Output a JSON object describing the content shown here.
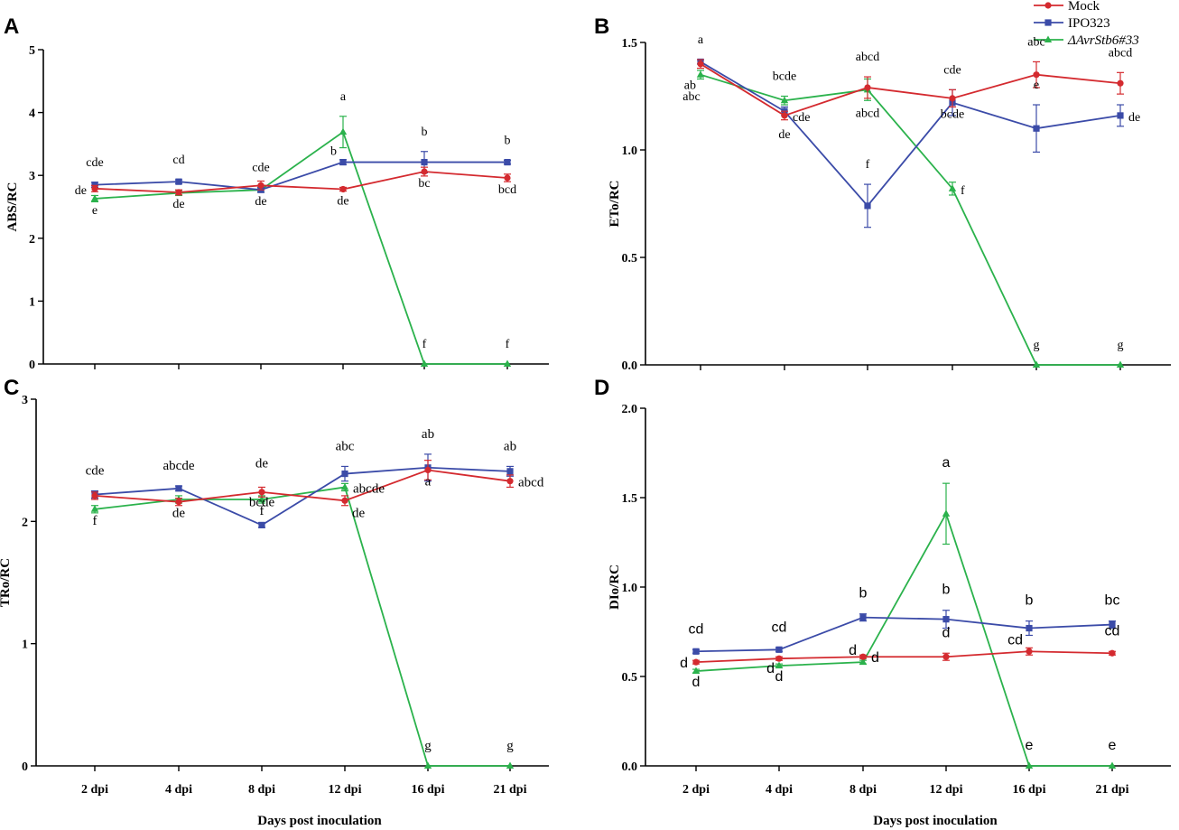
{
  "figure": {
    "xlabel": "Days post inoculation"
  },
  "legend": [
    {
      "name": "Mock",
      "color": "#d42a2f",
      "marker": "circle",
      "italic": false
    },
    {
      "name": "IPO323",
      "color": "#3b4ba8",
      "marker": "square",
      "italic": false
    },
    {
      "name": "ΔAvrStb6#33",
      "color": "#2bb24c",
      "marker": "triangle",
      "italic": true
    }
  ],
  "chart_data": [
    {
      "id": "A",
      "type": "line",
      "ylabel": "ABS/RC",
      "ylim": [
        0,
        5
      ],
      "yticks": [
        "0",
        "1",
        "2",
        "3",
        "4",
        "5"
      ],
      "xlabel": "",
      "categories": [
        "2 dpi",
        "4 dpi",
        "8 dpi",
        "12 dpi",
        "16 dpi",
        "21 dpi"
      ],
      "series": [
        {
          "name": "Mock",
          "values": [
            2.79,
            2.73,
            2.84,
            2.78,
            3.06,
            2.96
          ],
          "errors": [
            0.05,
            0.04,
            0.07,
            0.03,
            0.07,
            0.06
          ],
          "letters": [
            {
              "t": "de",
              "i": 0,
              "pos": "left"
            },
            {
              "t": "de",
              "i": 1,
              "pos": "below"
            },
            {
              "t": "de",
              "i": 3,
              "pos": "below"
            },
            {
              "t": "bc",
              "i": 4,
              "pos": "below"
            },
            {
              "t": "bcd",
              "i": 5,
              "pos": "below"
            }
          ]
        },
        {
          "name": "IPO323",
          "values": [
            2.85,
            2.9,
            2.77,
            3.21,
            3.21,
            3.21
          ],
          "errors": [
            0.04,
            0.03,
            0.04,
            0.04,
            0.17,
            0.03
          ],
          "letters": [
            {
              "t": "cde",
              "i": 0,
              "pos": "above"
            },
            {
              "t": "cd",
              "i": 1,
              "pos": "above"
            },
            {
              "t": "cde",
              "i": 2,
              "pos": "above"
            },
            {
              "t": "b",
              "i": 3,
              "pos": "aboveleft"
            },
            {
              "t": "b",
              "i": 4,
              "pos": "above"
            },
            {
              "t": "b",
              "i": 5,
              "pos": "above"
            }
          ]
        },
        {
          "name": "ΔAvrStb6#33",
          "values": [
            2.63,
            2.72,
            2.77,
            3.69,
            0.0,
            0.0
          ],
          "errors": [
            0.05,
            0.04,
            0.03,
            0.25,
            0,
            0
          ],
          "letters": [
            {
              "t": "e",
              "i": 0,
              "pos": "below"
            },
            {
              "t": "de",
              "i": 2,
              "pos": "below"
            },
            {
              "t": "a",
              "i": 3,
              "pos": "above"
            },
            {
              "t": "f",
              "i": 4,
              "pos": "above"
            },
            {
              "t": "f",
              "i": 5,
              "pos": "above"
            }
          ]
        }
      ]
    },
    {
      "id": "B",
      "type": "line",
      "ylabel": "ETo/RC",
      "ylim": [
        0,
        1.5
      ],
      "yticks": [
        "0.0",
        "0.5",
        "1.0",
        "1.5"
      ],
      "xlabel": "",
      "categories": [
        "2 dpi",
        "4 dpi",
        "8 dpi",
        "12 dpi",
        "16 dpi",
        "21 dpi"
      ],
      "series": [
        {
          "name": "Mock",
          "values": [
            1.4,
            1.16,
            1.29,
            1.24,
            1.35,
            1.31
          ],
          "errors": [
            0.02,
            0.02,
            0.05,
            0.04,
            0.06,
            0.05
          ],
          "letters": [
            {
              "t": "abc",
              "i": 0,
              "pos": "custombelow"
            },
            {
              "t": "cde",
              "i": 1,
              "pos": "right"
            },
            {
              "t": "abcd",
              "i": 2,
              "pos": "above"
            },
            {
              "t": "cde",
              "i": 3,
              "pos": "above"
            },
            {
              "t": "abc",
              "i": 4,
              "pos": "above"
            },
            {
              "t": "abcd",
              "i": 5,
              "pos": "above"
            }
          ]
        },
        {
          "name": "IPO323",
          "values": [
            1.41,
            1.18,
            0.74,
            1.22,
            1.1,
            1.16
          ],
          "errors": [
            0.01,
            0.02,
            0.1,
            0.06,
            0.11,
            0.05
          ],
          "letters": [
            {
              "t": "a",
              "i": 0,
              "pos": "above"
            },
            {
              "t": "de",
              "i": 1,
              "pos": "belowfar"
            },
            {
              "t": "f",
              "i": 2,
              "pos": "above"
            },
            {
              "t": "bcde",
              "i": 3,
              "pos": "below"
            },
            {
              "t": "e",
              "i": 4,
              "pos": "above"
            },
            {
              "t": "de",
              "i": 5,
              "pos": "right"
            }
          ]
        },
        {
          "name": "ΔAvrStb6#33",
          "values": [
            1.35,
            1.23,
            1.28,
            0.82,
            0.0,
            0.0
          ],
          "errors": [
            0.02,
            0.02,
            0.05,
            0.03,
            0,
            0
          ],
          "letters": [
            {
              "t": "ab",
              "i": 0,
              "pos": "belowleft"
            },
            {
              "t": "bcde",
              "i": 1,
              "pos": "above"
            },
            {
              "t": "abcd",
              "i": 2,
              "pos": "belowfar"
            },
            {
              "t": "f",
              "i": 3,
              "pos": "right"
            },
            {
              "t": "g",
              "i": 4,
              "pos": "above"
            },
            {
              "t": "g",
              "i": 5,
              "pos": "above"
            }
          ]
        }
      ]
    },
    {
      "id": "C",
      "type": "line",
      "ylabel": "TRo/RC",
      "ylim": [
        0,
        3
      ],
      "yticks": [
        "0",
        "1",
        "2",
        "3"
      ],
      "xlabel": "Days post inoculation",
      "categories": [
        "2 dpi",
        "4 dpi",
        "8 dpi",
        "12 dpi",
        "16 dpi",
        "21 dpi"
      ],
      "series": [
        {
          "name": "Mock",
          "values": [
            2.21,
            2.16,
            2.24,
            2.17,
            2.42,
            2.33
          ],
          "errors": [
            0.03,
            0.03,
            0.04,
            0.04,
            0.08,
            0.05
          ],
          "letters": [
            {
              "t": "de",
              "i": 1,
              "pos": "below"
            },
            {
              "t": "de",
              "i": 2,
              "pos": "above2"
            },
            {
              "t": "de",
              "i": 3,
              "pos": "belowright"
            },
            {
              "t": "a",
              "i": 4,
              "pos": "below"
            },
            {
              "t": "abcd",
              "i": 5,
              "pos": "right"
            }
          ]
        },
        {
          "name": "IPO323",
          "values": [
            2.22,
            2.27,
            1.97,
            2.39,
            2.44,
            2.41
          ],
          "errors": [
            0.03,
            0.02,
            0.02,
            0.06,
            0.11,
            0.04
          ],
          "letters": [
            {
              "t": "cde",
              "i": 0,
              "pos": "above"
            },
            {
              "t": "abcde",
              "i": 1,
              "pos": "above"
            },
            {
              "t": "bcde",
              "i": 2,
              "pos": "above"
            },
            {
              "t": "abc",
              "i": 3,
              "pos": "above"
            },
            {
              "t": "ab",
              "i": 4,
              "pos": "above"
            },
            {
              "t": "ab",
              "i": 5,
              "pos": "above"
            }
          ]
        },
        {
          "name": "ΔAvrStb6#33",
          "values": [
            2.1,
            2.18,
            2.18,
            2.28,
            0.0,
            0.0
          ],
          "errors": [
            0.03,
            0.03,
            0.03,
            0.03,
            0,
            0
          ],
          "letters": [
            {
              "t": "f",
              "i": 0,
              "pos": "below"
            },
            {
              "t": "f",
              "i": 2,
              "pos": "below"
            },
            {
              "t": "abcde",
              "i": 3,
              "pos": "right"
            },
            {
              "t": "g",
              "i": 4,
              "pos": "above"
            },
            {
              "t": "g",
              "i": 5,
              "pos": "above"
            }
          ]
        }
      ]
    },
    {
      "id": "D",
      "type": "line",
      "ylabel": "DIo/RC",
      "ylim": [
        0,
        2
      ],
      "yticks": [
        "0.0",
        "0.5",
        "1.0",
        "1.5",
        "2.0"
      ],
      "xlabel": "Days post inoculation",
      "categories": [
        "2 dpi",
        "4 dpi",
        "8 dpi",
        "12 dpi",
        "16 dpi",
        "21 dpi"
      ],
      "series": [
        {
          "name": "Mock",
          "values": [
            0.58,
            0.6,
            0.61,
            0.61,
            0.64,
            0.63
          ],
          "errors": [
            0.01,
            0.01,
            0.01,
            0.02,
            0.02,
            0.01
          ],
          "letters": [
            {
              "t": "d",
              "i": 0,
              "pos": "left"
            },
            {
              "t": "d",
              "i": 1,
              "pos": "belowleft"
            },
            {
              "t": "d",
              "i": 2,
              "pos": "right"
            },
            {
              "t": "d",
              "i": 3,
              "pos": "above"
            },
            {
              "t": "cd",
              "i": 4,
              "pos": "aboveleft"
            },
            {
              "t": "cd",
              "i": 5,
              "pos": "above"
            }
          ]
        },
        {
          "name": "IPO323",
          "values": [
            0.64,
            0.65,
            0.83,
            0.82,
            0.77,
            0.79
          ],
          "errors": [
            0.01,
            0.01,
            0.02,
            0.05,
            0.04,
            0.02
          ],
          "letters": [
            {
              "t": "cd",
              "i": 0,
              "pos": "above"
            },
            {
              "t": "cd",
              "i": 1,
              "pos": "above"
            },
            {
              "t": "b",
              "i": 2,
              "pos": "above"
            },
            {
              "t": "b",
              "i": 3,
              "pos": "above"
            },
            {
              "t": "b",
              "i": 4,
              "pos": "above"
            },
            {
              "t": "bc",
              "i": 5,
              "pos": "above"
            }
          ]
        },
        {
          "name": "ΔAvrStb6#33",
          "values": [
            0.53,
            0.56,
            0.58,
            1.41,
            0.0,
            0.0
          ],
          "errors": [
            0.01,
            0.01,
            0.01,
            0.17,
            0,
            0
          ],
          "letters": [
            {
              "t": "d",
              "i": 0,
              "pos": "below"
            },
            {
              "t": "d",
              "i": 1,
              "pos": "below"
            },
            {
              "t": "d",
              "i": 2,
              "pos": "aboveleft"
            },
            {
              "t": "a",
              "i": 3,
              "pos": "above"
            },
            {
              "t": "e",
              "i": 4,
              "pos": "above"
            },
            {
              "t": "e",
              "i": 5,
              "pos": "above"
            }
          ]
        }
      ]
    }
  ]
}
